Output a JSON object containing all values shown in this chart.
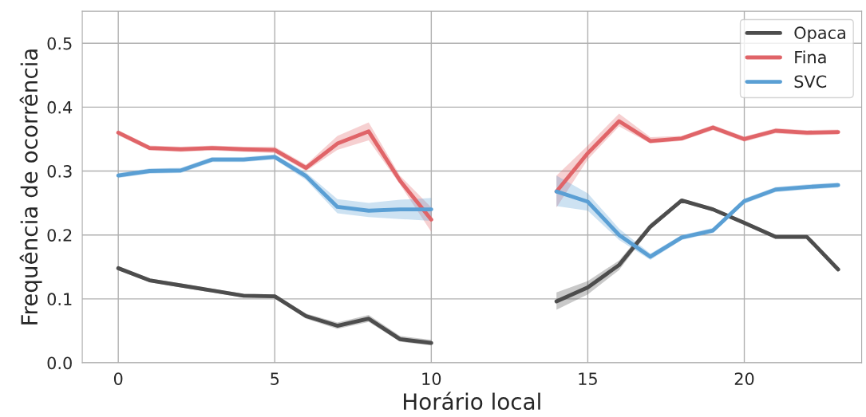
{
  "chart_data": {
    "type": "line",
    "xlabel": "Horário local",
    "ylabel": "Frequência de ocorrência",
    "x": [
      0,
      1,
      2,
      3,
      4,
      5,
      6,
      7,
      8,
      9,
      10,
      11,
      12,
      13,
      14,
      15,
      16,
      17,
      18,
      19,
      20,
      21,
      22,
      23
    ],
    "xlim": [
      -1.15,
      23.75
    ],
    "xticks": [
      0,
      5,
      10,
      15,
      20
    ],
    "ylim": [
      0,
      0.55
    ],
    "yticks": [
      {
        "value": 0,
        "label": "0.0"
      },
      {
        "value": 0.1,
        "label": "0.1"
      },
      {
        "value": 0.2,
        "label": "0.2"
      },
      {
        "value": 0.3,
        "label": "0.3"
      },
      {
        "value": 0.4,
        "label": "0.4"
      },
      {
        "value": 0.5,
        "label": "0.5"
      }
    ],
    "grid": true,
    "legend": "top right",
    "line_style": "solid",
    "marker": "none",
    "series": [
      {
        "name": "Opaca",
        "color": "#4d4d4d",
        "values": [
          0.148,
          0.129,
          0.121,
          0.113,
          0.105,
          0.104,
          0.073,
          0.058,
          0.069,
          0.037,
          0.031,
          null,
          null,
          null,
          0.096,
          0.118,
          0.153,
          0.213,
          0.254,
          0.24,
          0.219,
          0.197,
          0.197,
          0.146
        ],
        "lower": [
          0.145,
          0.126,
          0.118,
          0.11,
          0.102,
          0.101,
          0.069,
          0.053,
          0.064,
          0.033,
          0.027,
          null,
          null,
          null,
          0.083,
          0.107,
          0.145,
          0.209,
          0.251,
          0.237,
          0.216,
          0.194,
          0.194,
          0.143
        ],
        "upper": [
          0.151,
          0.132,
          0.124,
          0.116,
          0.108,
          0.107,
          0.077,
          0.063,
          0.075,
          0.042,
          0.036,
          null,
          null,
          null,
          0.11,
          0.128,
          0.16,
          0.218,
          0.257,
          0.243,
          0.222,
          0.2,
          0.2,
          0.149
        ]
      },
      {
        "name": "Fina",
        "color": "#e06468",
        "values": [
          0.36,
          0.336,
          0.334,
          0.336,
          0.334,
          0.333,
          0.305,
          0.343,
          0.362,
          0.285,
          0.224,
          null,
          null,
          null,
          0.268,
          0.328,
          0.378,
          0.347,
          0.351,
          0.368,
          0.35,
          0.363,
          0.36,
          0.361
        ],
        "lower": [
          0.356,
          0.332,
          0.33,
          0.332,
          0.33,
          0.328,
          0.3,
          0.333,
          0.348,
          0.279,
          0.205,
          null,
          null,
          null,
          0.243,
          0.318,
          0.37,
          0.343,
          0.347,
          0.364,
          0.346,
          0.359,
          0.356,
          0.357
        ],
        "upper": [
          0.364,
          0.34,
          0.338,
          0.34,
          0.338,
          0.338,
          0.31,
          0.355,
          0.376,
          0.293,
          0.243,
          null,
          null,
          null,
          0.293,
          0.34,
          0.39,
          0.353,
          0.355,
          0.372,
          0.354,
          0.367,
          0.364,
          0.365
        ]
      },
      {
        "name": "SVC",
        "color": "#5a9fd4",
        "values": [
          0.293,
          0.3,
          0.301,
          0.318,
          0.318,
          0.322,
          0.292,
          0.244,
          0.238,
          0.24,
          0.24,
          null,
          null,
          null,
          0.268,
          0.252,
          0.2,
          0.166,
          0.196,
          0.207,
          0.253,
          0.271,
          0.275,
          0.278
        ],
        "lower": [
          0.289,
          0.296,
          0.297,
          0.314,
          0.314,
          0.318,
          0.286,
          0.234,
          0.228,
          0.225,
          0.222,
          null,
          null,
          null,
          0.245,
          0.238,
          0.192,
          0.161,
          0.192,
          0.203,
          0.249,
          0.267,
          0.271,
          0.274
        ],
        "upper": [
          0.297,
          0.304,
          0.305,
          0.322,
          0.322,
          0.326,
          0.298,
          0.256,
          0.25,
          0.255,
          0.258,
          null,
          null,
          null,
          0.293,
          0.265,
          0.21,
          0.171,
          0.2,
          0.211,
          0.257,
          0.275,
          0.279,
          0.282
        ]
      }
    ]
  }
}
